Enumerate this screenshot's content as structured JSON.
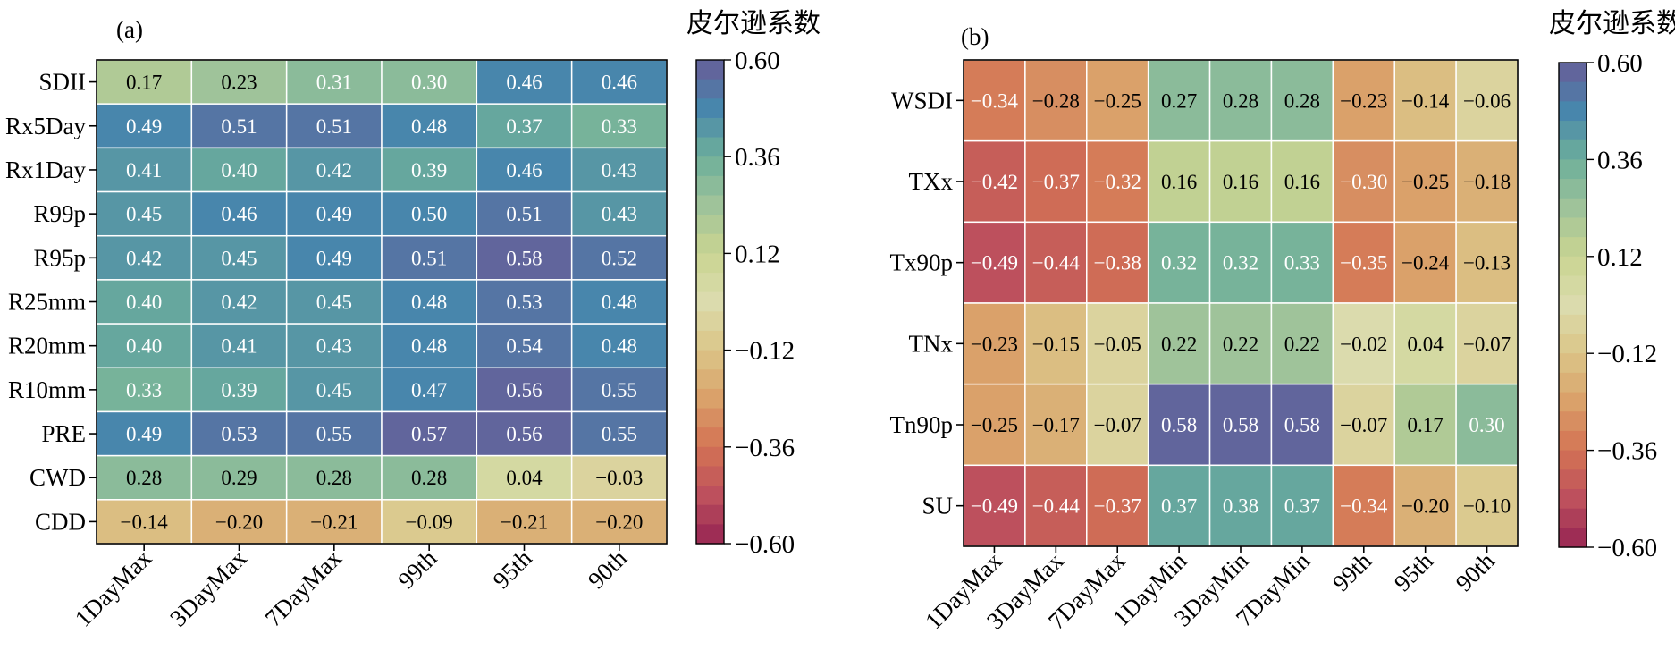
{
  "chart_data": [
    {
      "type": "heatmap",
      "panel_label": "(a)",
      "colorbar_title": "皮尔逊系数",
      "x": [
        "1DayMax",
        "3DayMax",
        "7DayMax",
        "99th",
        "95th",
        "90th"
      ],
      "y": [
        "SDII",
        "Rx5Day",
        "Rx1Day",
        "R99p",
        "R95p",
        "R25mm",
        "R20mm",
        "R10mm",
        "PRE",
        "CWD",
        "CDD"
      ],
      "values": [
        [
          0.17,
          0.23,
          0.31,
          0.3,
          0.46,
          0.46
        ],
        [
          0.49,
          0.51,
          0.51,
          0.48,
          0.37,
          0.33
        ],
        [
          0.41,
          0.4,
          0.42,
          0.39,
          0.46,
          0.43
        ],
        [
          0.45,
          0.46,
          0.49,
          0.5,
          0.51,
          0.43
        ],
        [
          0.42,
          0.45,
          0.49,
          0.51,
          0.58,
          0.52
        ],
        [
          0.4,
          0.42,
          0.45,
          0.48,
          0.53,
          0.48
        ],
        [
          0.4,
          0.41,
          0.43,
          0.48,
          0.54,
          0.48
        ],
        [
          0.33,
          0.39,
          0.45,
          0.47,
          0.56,
          0.55
        ],
        [
          0.49,
          0.53,
          0.55,
          0.57,
          0.56,
          0.55
        ],
        [
          0.28,
          0.29,
          0.28,
          0.28,
          0.04,
          -0.03
        ],
        [
          -0.14,
          -0.2,
          -0.21,
          -0.09,
          -0.21,
          -0.2
        ]
      ],
      "zlim": [
        -0.6,
        0.6
      ],
      "colorbar_ticks": [
        0.6,
        0.36,
        0.12,
        -0.12,
        -0.36,
        -0.6
      ],
      "colorbar_tick_labels": [
        "0.60",
        "0.36",
        "0.12",
        "−0.12",
        "−0.36",
        "−0.60"
      ],
      "colormap": "Spectral_r (reversed, 25 steps)"
    },
    {
      "type": "heatmap",
      "panel_label": "(b)",
      "colorbar_title": "皮尔逊系数",
      "x": [
        "1DayMax",
        "3DayMax",
        "7DayMax",
        "1DayMin",
        "3DayMin",
        "7DayMin",
        "99th",
        "95th",
        "90th"
      ],
      "y": [
        "WSDI",
        "TXx",
        "Tx90p",
        "TNx",
        "Tn90p",
        "SU"
      ],
      "values": [
        [
          -0.34,
          -0.28,
          -0.25,
          0.27,
          0.28,
          0.28,
          -0.23,
          -0.14,
          -0.06
        ],
        [
          -0.42,
          -0.37,
          -0.32,
          0.16,
          0.16,
          0.16,
          -0.3,
          -0.25,
          -0.18
        ],
        [
          -0.49,
          -0.44,
          -0.38,
          0.32,
          0.32,
          0.33,
          -0.35,
          -0.24,
          -0.13
        ],
        [
          -0.23,
          -0.15,
          -0.05,
          0.22,
          0.22,
          0.22,
          -0.02,
          0.04,
          -0.07
        ],
        [
          -0.25,
          -0.17,
          -0.07,
          0.58,
          0.58,
          0.58,
          -0.07,
          0.17,
          0.3
        ],
        [
          -0.49,
          -0.44,
          -0.37,
          0.37,
          0.38,
          0.37,
          -0.34,
          -0.2,
          -0.1
        ]
      ],
      "zlim": [
        -0.6,
        0.6
      ],
      "colorbar_ticks": [
        0.6,
        0.36,
        0.12,
        -0.12,
        -0.36,
        -0.6
      ],
      "colorbar_tick_labels": [
        "0.60",
        "0.36",
        "0.12",
        "−0.12",
        "−0.36",
        "−0.60"
      ],
      "colormap": "Spectral_r (reversed, 25 steps)"
    }
  ]
}
